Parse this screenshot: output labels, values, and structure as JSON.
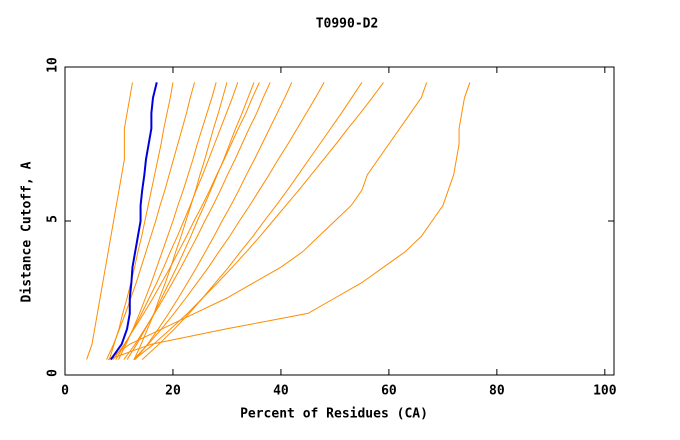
{
  "chart_data": {
    "type": "line",
    "title": "T0990-D2",
    "x_label": "Percent of Residues (CA)",
    "y_label": "Distance Cutoff, A",
    "xlim": [
      0,
      101.7
    ],
    "ylim": [
      0,
      10
    ],
    "xticks": [
      0,
      20,
      40,
      60,
      80,
      100
    ],
    "yticks": [
      0,
      5,
      10
    ],
    "y": [
      0.5,
      1,
      1.5,
      2,
      2.5,
      3,
      3.5,
      4,
      4.5,
      5,
      5.5,
      6,
      6.5,
      7,
      7.5,
      8,
      8.5,
      9,
      9.5
    ],
    "series": [
      {
        "color": "#ff8c00",
        "x": [
          8,
          16,
          30,
          45,
          50,
          55,
          59,
          63,
          66,
          68,
          70,
          71,
          72,
          72.5,
          73,
          73,
          73.5,
          74,
          75
        ]
      },
      {
        "color": "#ff8c00",
        "x": [
          8,
          12,
          18,
          24,
          30,
          35,
          40,
          44,
          47,
          50,
          53,
          55,
          56,
          58,
          60,
          62,
          64,
          66,
          67
        ]
      },
      {
        "color": "#ff8c00",
        "x": [
          4,
          5,
          5.5,
          6,
          6.5,
          7,
          7.5,
          8,
          8.5,
          9,
          9.5,
          10,
          10.5,
          11,
          11,
          11,
          11.5,
          12,
          12.5
        ]
      },
      {
        "color": "#ff8c00",
        "x": [
          8.2,
          9.1,
          10,
          10.7,
          11.5,
          12.2,
          12.9,
          13.5,
          14.2,
          14.8,
          15.4,
          16,
          16.6,
          17.2,
          17.8,
          18.3,
          18.9,
          19.5,
          20
        ]
      },
      {
        "color": "#ff8c00",
        "x": [
          7.7,
          9,
          10.1,
          11.2,
          12.2,
          13.2,
          14.1,
          15,
          15.9,
          16.8,
          17.6,
          18.5,
          19.3,
          20.1,
          20.9,
          21.7,
          22.5,
          23.2,
          24
        ]
      },
      {
        "color": "#ff8c00",
        "x": [
          9.9,
          11.3,
          12.6,
          13.8,
          14.9,
          16,
          17,
          18,
          19,
          20,
          20.9,
          21.9,
          22.8,
          23.7,
          24.5,
          25.4,
          26.3,
          27.2,
          28
        ]
      },
      {
        "color": "#ff8c00",
        "x": [
          9.4,
          11.1,
          12.7,
          14.2,
          15.6,
          17,
          18.3,
          19.5,
          20.8,
          22,
          23.2,
          24.3,
          25.5,
          26.6,
          27.7,
          28.8,
          29.9,
          31,
          32
        ]
      },
      {
        "color": "#ff8c00",
        "x": [
          11.5,
          13.3,
          14.9,
          16.5,
          17.9,
          19.3,
          20.7,
          22,
          23.3,
          24.5,
          25.8,
          27,
          28.2,
          29.4,
          30.5,
          31.6,
          32.8,
          33.9,
          35
        ]
      },
      {
        "color": "#ff8c00",
        "x": [
          10.9,
          13,
          14.8,
          16.6,
          18.3,
          19.9,
          21.5,
          23,
          24.5,
          25.9,
          27.4,
          28.8,
          30.1,
          31.5,
          32.8,
          34.1,
          35.5,
          36.7,
          38
        ]
      },
      {
        "color": "#ff8c00",
        "x": [
          13,
          15.3,
          17.3,
          19.2,
          21,
          22.7,
          24.4,
          26,
          27.6,
          29.1,
          30.7,
          32.2,
          33.6,
          35.1,
          36.5,
          37.9,
          39.3,
          40.7,
          42
        ]
      },
      {
        "color": "#ff8c00",
        "x": [
          12.7,
          15.4,
          17.9,
          20.2,
          22.4,
          24.5,
          26.6,
          28.5,
          30.5,
          32.3,
          34.2,
          36,
          37.8,
          39.5,
          41.3,
          43,
          44.7,
          46.4,
          48
        ]
      },
      {
        "color": "#ff8c00",
        "x": [
          14.3,
          17.4,
          20.3,
          23,
          25.5,
          27.9,
          30.3,
          32.5,
          34.8,
          36.9,
          39.1,
          41.2,
          43.2,
          45.2,
          47.2,
          49.2,
          51.2,
          53.1,
          55
        ]
      },
      {
        "color": "#ff8c00",
        "x": [
          12.8,
          16.4,
          19.6,
          22.7,
          25.5,
          28.3,
          31,
          33.6,
          36.1,
          38.5,
          40.9,
          43.3,
          45.6,
          47.9,
          50.2,
          52.4,
          54.7,
          56.9,
          59
        ]
      },
      {
        "color": "#ff8c00",
        "x": [
          8.9,
          11,
          12.8,
          14.6,
          16.3,
          17.9,
          19.5,
          21,
          22.5,
          23.9,
          25.4,
          26.8,
          28.1,
          29.5,
          30.8,
          32.1,
          33.5,
          34.7,
          36
        ]
      },
      {
        "color": "#ff8c00",
        "x": [
          12.8,
          14.1,
          15.3,
          16.5,
          17.5,
          18.6,
          19.6,
          20.5,
          21.5,
          22.4,
          23.3,
          24.2,
          25,
          25.9,
          26.7,
          27.5,
          28.4,
          29.2,
          30
        ]
      },
      {
        "color": "#0000dd",
        "x": [
          8.5,
          10.5,
          11.5,
          12,
          12,
          12.3,
          12.5,
          13,
          13.5,
          14,
          14,
          14.3,
          14.7,
          15,
          15.5,
          16,
          16,
          16.3,
          17
        ]
      }
    ]
  }
}
